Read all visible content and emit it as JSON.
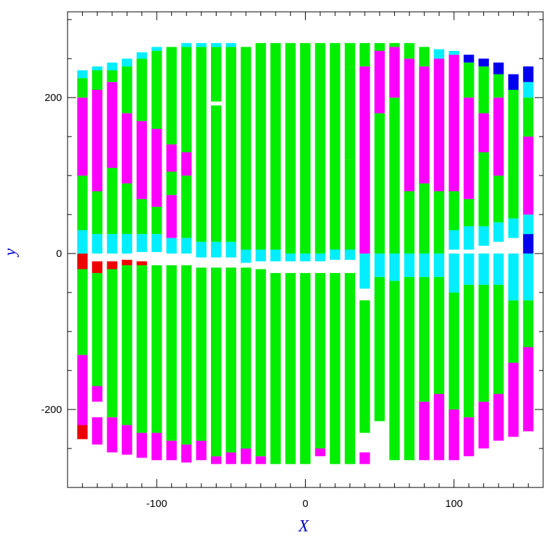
{
  "chart_data": {
    "type": "heatmap",
    "title": "",
    "xlabel": "X",
    "ylabel": "y",
    "xlim": [
      -160,
      160
    ],
    "ylim": [
      -300,
      310
    ],
    "x_ticks": [
      -100,
      0,
      100
    ],
    "y_ticks": [
      -200,
      0,
      200
    ],
    "x_tick_labels": [
      "-100",
      "0",
      "100"
    ],
    "y_tick_labels": [
      "-200",
      "0",
      "200"
    ],
    "grid": false,
    "colors": {
      "green": "#00ee00",
      "magenta": "#ff00ff",
      "cyan": "#00eeff",
      "blue": "#0000ee",
      "red": "#ee0000",
      "axis_label": "#0000cc",
      "frame": "#000000"
    },
    "strip_width": 7,
    "strips": [
      {
        "x": -150,
        "segments": [
          [
            -238,
            -220,
            "red"
          ],
          [
            -220,
            -130,
            "magenta"
          ],
          [
            -130,
            -20,
            "green"
          ],
          [
            -20,
            0,
            "red"
          ],
          [
            0,
            30,
            "cyan"
          ],
          [
            30,
            100,
            "green"
          ],
          [
            100,
            200,
            "magenta"
          ],
          [
            200,
            225,
            "green"
          ],
          [
            225,
            235,
            "cyan"
          ]
        ]
      },
      {
        "x": -140,
        "segments": [
          [
            -245,
            -210,
            "magenta"
          ],
          [
            -190,
            -170,
            "magenta"
          ],
          [
            -170,
            -25,
            "green"
          ],
          [
            -25,
            -10,
            "red"
          ],
          [
            0,
            25,
            "cyan"
          ],
          [
            25,
            80,
            "green"
          ],
          [
            80,
            210,
            "magenta"
          ],
          [
            210,
            235,
            "green"
          ],
          [
            235,
            240,
            "cyan"
          ]
        ]
      },
      {
        "x": -130,
        "segments": [
          [
            -255,
            -210,
            "magenta"
          ],
          [
            -210,
            -20,
            "green"
          ],
          [
            -20,
            -10,
            "red"
          ],
          [
            0,
            25,
            "cyan"
          ],
          [
            25,
            110,
            "green"
          ],
          [
            110,
            220,
            "magenta"
          ],
          [
            220,
            235,
            "green"
          ],
          [
            235,
            245,
            "cyan"
          ]
        ]
      },
      {
        "x": -120,
        "segments": [
          [
            -258,
            -220,
            "magenta"
          ],
          [
            -220,
            -15,
            "green"
          ],
          [
            -15,
            -8,
            "red"
          ],
          [
            0,
            25,
            "cyan"
          ],
          [
            25,
            90,
            "green"
          ],
          [
            90,
            180,
            "magenta"
          ],
          [
            180,
            240,
            "green"
          ],
          [
            240,
            250,
            "cyan"
          ]
        ]
      },
      {
        "x": -110,
        "segments": [
          [
            -262,
            -230,
            "magenta"
          ],
          [
            -230,
            -15,
            "green"
          ],
          [
            -15,
            -10,
            "red"
          ],
          [
            2,
            25,
            "cyan"
          ],
          [
            25,
            70,
            "green"
          ],
          [
            70,
            170,
            "magenta"
          ],
          [
            170,
            250,
            "green"
          ],
          [
            250,
            258,
            "cyan"
          ]
        ]
      },
      {
        "x": -100,
        "segments": [
          [
            -265,
            -230,
            "magenta"
          ],
          [
            -230,
            -15,
            "green"
          ],
          [
            2,
            25,
            "cyan"
          ],
          [
            25,
            60,
            "green"
          ],
          [
            60,
            160,
            "magenta"
          ],
          [
            160,
            260,
            "green"
          ],
          [
            260,
            265,
            "cyan"
          ]
        ]
      },
      {
        "x": -90,
        "segments": [
          [
            -265,
            -240,
            "magenta"
          ],
          [
            -240,
            -15,
            "green"
          ],
          [
            0,
            20,
            "cyan"
          ],
          [
            20,
            75,
            "magenta"
          ],
          [
            75,
            105,
            "green"
          ],
          [
            105,
            140,
            "magenta"
          ],
          [
            140,
            265,
            "green"
          ]
        ]
      },
      {
        "x": -80,
        "segments": [
          [
            -268,
            -245,
            "magenta"
          ],
          [
            -245,
            -15,
            "green"
          ],
          [
            0,
            20,
            "cyan"
          ],
          [
            20,
            100,
            "green"
          ],
          [
            100,
            130,
            "magenta"
          ],
          [
            130,
            265,
            "green"
          ],
          [
            265,
            270,
            "cyan"
          ]
        ]
      },
      {
        "x": -70,
        "segments": [
          [
            -265,
            -240,
            "magenta"
          ],
          [
            -240,
            -18,
            "green"
          ],
          [
            -5,
            15,
            "cyan"
          ],
          [
            15,
            265,
            "green"
          ],
          [
            265,
            270,
            "cyan"
          ]
        ]
      },
      {
        "x": -60,
        "segments": [
          [
            -270,
            -260,
            "magenta"
          ],
          [
            -260,
            -18,
            "green"
          ],
          [
            -5,
            15,
            "cyan"
          ],
          [
            15,
            190,
            "green"
          ],
          [
            195,
            265,
            "green"
          ],
          [
            265,
            270,
            "cyan"
          ]
        ]
      },
      {
        "x": -50,
        "segments": [
          [
            -270,
            -255,
            "magenta"
          ],
          [
            -255,
            -18,
            "green"
          ],
          [
            -5,
            15,
            "cyan"
          ],
          [
            15,
            265,
            "green"
          ],
          [
            265,
            270,
            "cyan"
          ]
        ]
      },
      {
        "x": -40,
        "segments": [
          [
            -270,
            -250,
            "magenta"
          ],
          [
            -250,
            -18,
            "green"
          ],
          [
            -12,
            5,
            "cyan"
          ],
          [
            5,
            265,
            "green"
          ]
        ]
      },
      {
        "x": -30,
        "segments": [
          [
            -270,
            -260,
            "magenta"
          ],
          [
            -260,
            -20,
            "green"
          ],
          [
            -10,
            5,
            "cyan"
          ],
          [
            5,
            270,
            "green"
          ]
        ]
      },
      {
        "x": -20,
        "segments": [
          [
            -270,
            -25,
            "green"
          ],
          [
            -10,
            5,
            "cyan"
          ],
          [
            5,
            270,
            "green"
          ]
        ]
      },
      {
        "x": -10,
        "segments": [
          [
            -270,
            -25,
            "green"
          ],
          [
            -10,
            0,
            "cyan"
          ],
          [
            0,
            270,
            "green"
          ]
        ]
      },
      {
        "x": 0,
        "segments": [
          [
            -270,
            -25,
            "green"
          ],
          [
            -10,
            0,
            "cyan"
          ],
          [
            0,
            270,
            "green"
          ]
        ]
      },
      {
        "x": 10,
        "segments": [
          [
            -260,
            -250,
            "magenta"
          ],
          [
            -250,
            -25,
            "green"
          ],
          [
            -10,
            0,
            "cyan"
          ],
          [
            0,
            270,
            "green"
          ]
        ]
      },
      {
        "x": 20,
        "segments": [
          [
            -270,
            -25,
            "green"
          ],
          [
            -8,
            5,
            "cyan"
          ],
          [
            5,
            270,
            "green"
          ]
        ]
      },
      {
        "x": 30,
        "segments": [
          [
            -270,
            -25,
            "green"
          ],
          [
            -8,
            5,
            "cyan"
          ],
          [
            5,
            120,
            "green"
          ],
          [
            120,
            240,
            "green"
          ],
          [
            240,
            270,
            "green"
          ]
        ]
      },
      {
        "x": 40,
        "segments": [
          [
            -270,
            -255,
            "magenta"
          ],
          [
            -230,
            -60,
            "green"
          ],
          [
            -45,
            0,
            "cyan"
          ],
          [
            0,
            240,
            "magenta"
          ],
          [
            240,
            270,
            "green"
          ]
        ]
      },
      {
        "x": 50,
        "segments": [
          [
            -215,
            -30,
            "green"
          ],
          [
            -30,
            0,
            "cyan"
          ],
          [
            0,
            180,
            "green"
          ],
          [
            180,
            260,
            "magenta"
          ],
          [
            260,
            270,
            "green"
          ]
        ]
      },
      {
        "x": 60,
        "segments": [
          [
            -265,
            -35,
            "green"
          ],
          [
            -35,
            0,
            "cyan"
          ],
          [
            0,
            200,
            "green"
          ],
          [
            200,
            265,
            "magenta"
          ],
          [
            265,
            270,
            "green"
          ]
        ]
      },
      {
        "x": 70,
        "segments": [
          [
            -265,
            -30,
            "green"
          ],
          [
            -30,
            0,
            "cyan"
          ],
          [
            0,
            80,
            "green"
          ],
          [
            80,
            250,
            "magenta"
          ],
          [
            250,
            270,
            "green"
          ]
        ]
      },
      {
        "x": 80,
        "segments": [
          [
            -265,
            -190,
            "magenta"
          ],
          [
            -190,
            -30,
            "green"
          ],
          [
            -30,
            0,
            "cyan"
          ],
          [
            0,
            90,
            "green"
          ],
          [
            90,
            240,
            "magenta"
          ],
          [
            240,
            265,
            "green"
          ]
        ]
      },
      {
        "x": 90,
        "segments": [
          [
            -265,
            -180,
            "magenta"
          ],
          [
            -180,
            -30,
            "green"
          ],
          [
            -30,
            0,
            "cyan"
          ],
          [
            0,
            80,
            "green"
          ],
          [
            80,
            250,
            "magenta"
          ],
          [
            250,
            262,
            "cyan"
          ]
        ]
      },
      {
        "x": 100,
        "segments": [
          [
            -265,
            -200,
            "magenta"
          ],
          [
            -200,
            -50,
            "green"
          ],
          [
            -50,
            0,
            "cyan"
          ],
          [
            5,
            30,
            "cyan"
          ],
          [
            30,
            80,
            "green"
          ],
          [
            80,
            255,
            "magenta"
          ],
          [
            255,
            260,
            "cyan"
          ]
        ]
      },
      {
        "x": 110,
        "segments": [
          [
            -260,
            -210,
            "magenta"
          ],
          [
            -210,
            -40,
            "green"
          ],
          [
            -40,
            0,
            "cyan"
          ],
          [
            5,
            35,
            "cyan"
          ],
          [
            35,
            70,
            "green"
          ],
          [
            70,
            200,
            "magenta"
          ],
          [
            200,
            245,
            "green"
          ],
          [
            245,
            255,
            "blue"
          ]
        ]
      },
      {
        "x": 120,
        "segments": [
          [
            -250,
            -190,
            "magenta"
          ],
          [
            -190,
            -40,
            "green"
          ],
          [
            -40,
            0,
            "cyan"
          ],
          [
            10,
            35,
            "cyan"
          ],
          [
            35,
            130,
            "green"
          ],
          [
            130,
            180,
            "magenta"
          ],
          [
            180,
            240,
            "green"
          ],
          [
            240,
            250,
            "blue"
          ]
        ]
      },
      {
        "x": 130,
        "segments": [
          [
            -240,
            -180,
            "magenta"
          ],
          [
            -180,
            -40,
            "green"
          ],
          [
            -40,
            0,
            "cyan"
          ],
          [
            15,
            40,
            "cyan"
          ],
          [
            40,
            100,
            "green"
          ],
          [
            100,
            200,
            "magenta"
          ],
          [
            200,
            230,
            "green"
          ],
          [
            230,
            245,
            "blue"
          ]
        ]
      },
      {
        "x": 140,
        "segments": [
          [
            -235,
            -140,
            "magenta"
          ],
          [
            -140,
            -60,
            "green"
          ],
          [
            -60,
            0,
            "cyan"
          ],
          [
            20,
            45,
            "cyan"
          ],
          [
            45,
            130,
            "green"
          ],
          [
            130,
            210,
            "green"
          ],
          [
            210,
            230,
            "blue"
          ]
        ]
      },
      {
        "x": 150,
        "segments": [
          [
            -228,
            -120,
            "magenta"
          ],
          [
            -120,
            -60,
            "green"
          ],
          [
            -60,
            0,
            "cyan"
          ],
          [
            0,
            25,
            "blue"
          ],
          [
            25,
            50,
            "cyan"
          ],
          [
            50,
            150,
            "magenta"
          ],
          [
            150,
            200,
            "green"
          ],
          [
            200,
            220,
            "cyan"
          ],
          [
            220,
            240,
            "blue"
          ]
        ]
      }
    ]
  }
}
